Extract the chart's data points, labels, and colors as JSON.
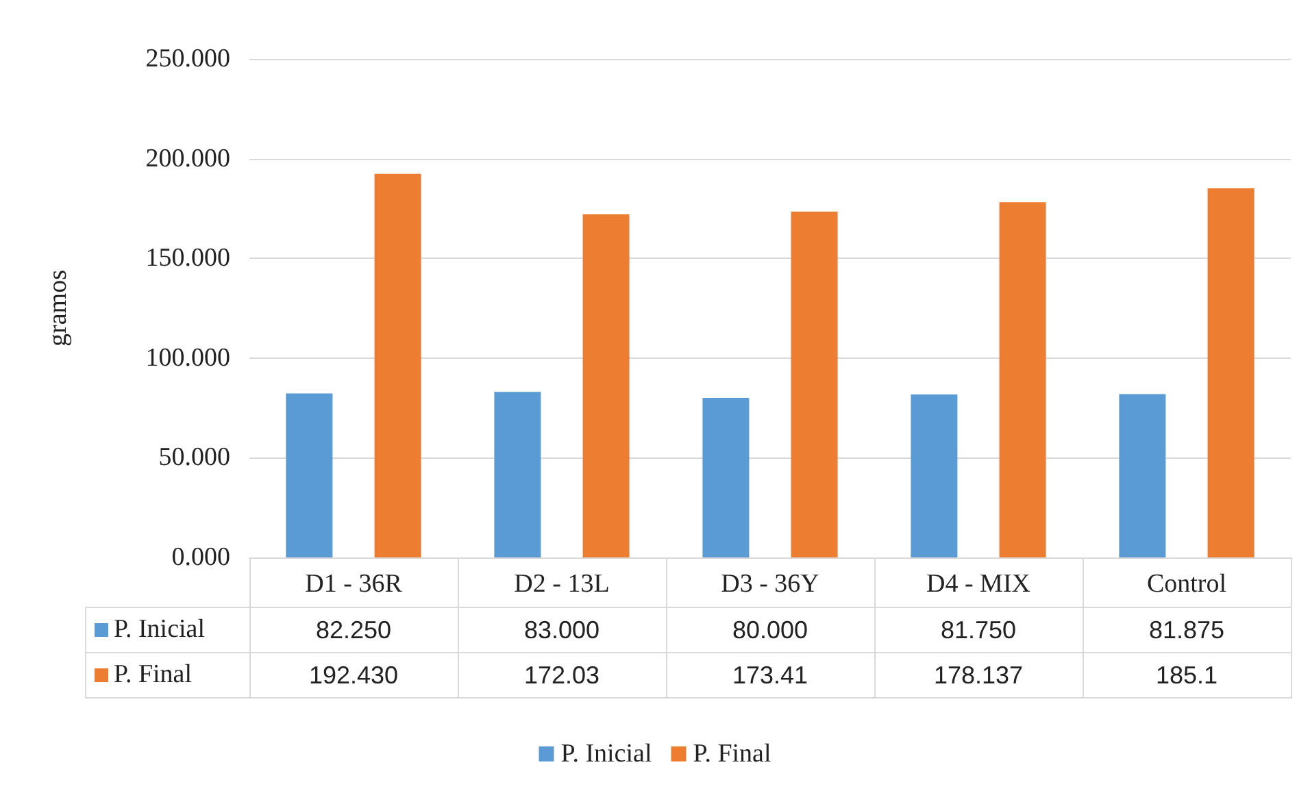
{
  "chart_data": {
    "type": "bar",
    "ylabel": "gramos",
    "categories": [
      "D1 - 36R",
      "D2 - 13L",
      "D3 - 36Y",
      "D4 - MIX",
      "Control"
    ],
    "series": [
      {
        "name": "P. Inicial",
        "color": "#5b9bd5",
        "values": [
          82.25,
          83,
          80,
          81.75,
          81.875
        ],
        "value_labels": [
          "82.250",
          "83.000",
          "80.000",
          "81.750",
          "81.875"
        ]
      },
      {
        "name": "P. Final",
        "color": "#ed7d31",
        "values": [
          192.43,
          172.03,
          173.41,
          178.137,
          185.1
        ],
        "value_labels": [
          "192.430",
          "172.03",
          "173.41",
          "178.137",
          "185.1"
        ]
      }
    ],
    "ylim": [
      0,
      250
    ],
    "yticks": [
      {
        "value": 0,
        "label": "0.000"
      },
      {
        "value": 50,
        "label": "50.000"
      },
      {
        "value": 100,
        "label": "100.000"
      },
      {
        "value": 150,
        "label": "150.000"
      },
      {
        "value": 200,
        "label": "200.000"
      },
      {
        "value": 250,
        "label": "250.000"
      }
    ],
    "grid": "y",
    "legend": "bottom"
  }
}
